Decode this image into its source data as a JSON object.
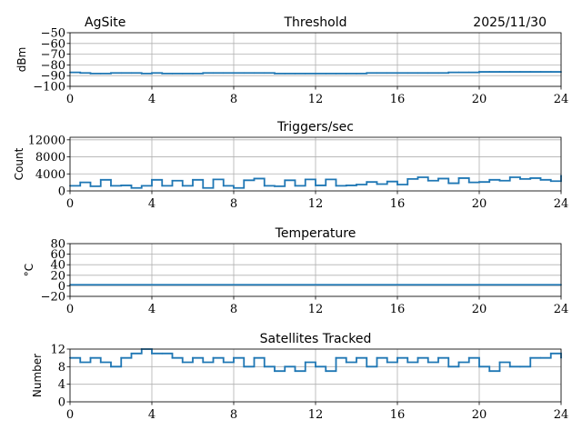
{
  "chart_data": [
    {
      "type": "line",
      "title": "Threshold",
      "title_left": "AgSite",
      "title_right": "2025/11/30",
      "xlabel": "",
      "ylabel": "dBm",
      "xlim": [
        0,
        24
      ],
      "ylim": [
        -100,
        -50
      ],
      "xticks": [
        "0",
        "4",
        "8",
        "12",
        "16",
        "20",
        "24"
      ],
      "yticks": [
        "−100",
        "−90",
        "−80",
        "−70",
        "−60",
        "−50"
      ],
      "ytick_values": [
        -100,
        -90,
        -80,
        -70,
        -60,
        -50
      ],
      "grid": true,
      "color": "#1f77b4",
      "x": [
        0,
        0.5,
        1,
        1.5,
        2,
        2.5,
        3,
        3.5,
        4,
        4.5,
        5,
        5.5,
        6,
        6.5,
        7,
        7.5,
        8,
        8.5,
        9,
        9.5,
        10,
        10.5,
        11,
        11.5,
        12,
        12.5,
        13,
        13.5,
        14,
        14.5,
        15,
        15.5,
        16,
        16.5,
        17,
        17.5,
        18,
        18.5,
        19,
        19.5,
        20,
        20.5,
        21,
        21.5,
        22,
        22.5,
        23,
        23.5,
        24
      ],
      "values": [
        -87,
        -87.5,
        -88,
        -88,
        -87.5,
        -87.5,
        -87.5,
        -88,
        -87.5,
        -88,
        -88,
        -88,
        -88,
        -87.5,
        -87.5,
        -87.5,
        -87.5,
        -87.5,
        -87.5,
        -87.5,
        -88,
        -88,
        -88,
        -88,
        -88,
        -88,
        -88,
        -88,
        -88,
        -87.5,
        -87.5,
        -87.5,
        -87.5,
        -87.5,
        -87.5,
        -87.5,
        -87.5,
        -87,
        -87,
        -87,
        -86.5,
        -86.5,
        -86.5,
        -86.5,
        -86.5,
        -86.5,
        -86.5,
        -86.5,
        -86.5
      ]
    },
    {
      "type": "line",
      "title": "Triggers/sec",
      "xlabel": "",
      "ylabel": "Count",
      "xlim": [
        0,
        24
      ],
      "ylim": [
        0,
        12600
      ],
      "xticks": [
        "0",
        "4",
        "8",
        "12",
        "16",
        "20",
        "24"
      ],
      "yticks": [
        "0",
        "4000",
        "8000",
        "12000"
      ],
      "ytick_values": [
        0,
        4000,
        8000,
        12000
      ],
      "grid": true,
      "color": "#1f77b4",
      "x": [
        0,
        0.5,
        1,
        1.5,
        2,
        2.5,
        3,
        3.5,
        4,
        4.5,
        5,
        5.5,
        6,
        6.5,
        7,
        7.5,
        8,
        8.5,
        9,
        9.5,
        10,
        10.5,
        11,
        11.5,
        12,
        12.5,
        13,
        13.5,
        14,
        14.5,
        15,
        15.5,
        16,
        16.5,
        17,
        17.5,
        18,
        18.5,
        19,
        19.5,
        20,
        20.5,
        21,
        21.5,
        22,
        22.5,
        23,
        23.5,
        24
      ],
      "values": [
        1200,
        2000,
        1100,
        2600,
        1200,
        1300,
        700,
        1200,
        2600,
        1200,
        2400,
        1200,
        2600,
        700,
        2700,
        1200,
        700,
        2500,
        2900,
        1200,
        1100,
        2500,
        1200,
        2700,
        1300,
        2700,
        1200,
        1300,
        1500,
        2100,
        1600,
        2200,
        1500,
        2800,
        3200,
        2400,
        2900,
        1800,
        3000,
        2000,
        2100,
        2600,
        2400,
        3200,
        2800,
        3000,
        2600,
        2300,
        3600
      ]
    },
    {
      "type": "line",
      "title": "Temperature",
      "xlabel": "",
      "ylabel": "°C",
      "xlim": [
        0,
        24
      ],
      "ylim": [
        -20,
        80
      ],
      "xticks": [
        "0",
        "4",
        "8",
        "12",
        "16",
        "20",
        "24"
      ],
      "yticks": [
        "−20",
        "0",
        "20",
        "40",
        "60",
        "80"
      ],
      "ytick_values": [
        -20,
        0,
        20,
        40,
        60,
        80
      ],
      "grid": true,
      "color": "#1f77b4",
      "x": [
        0,
        24
      ],
      "values": [
        2,
        2
      ]
    },
    {
      "type": "line",
      "title": "Satellites Tracked",
      "xlabel": "",
      "ylabel": "Number",
      "xlim": [
        0,
        24
      ],
      "ylim": [
        0,
        12
      ],
      "xticks": [
        "0",
        "4",
        "8",
        "12",
        "16",
        "20",
        "24"
      ],
      "yticks": [
        "0",
        "4",
        "8",
        "12"
      ],
      "ytick_values": [
        0,
        4,
        8,
        12
      ],
      "grid": true,
      "color": "#1f77b4",
      "x": [
        0,
        0.5,
        1,
        1.5,
        2,
        2.5,
        3,
        3.5,
        4,
        4.5,
        5,
        5.5,
        6,
        6.5,
        7,
        7.5,
        8,
        8.5,
        9,
        9.5,
        10,
        10.5,
        11,
        11.5,
        12,
        12.5,
        13,
        13.5,
        14,
        14.5,
        15,
        15.5,
        16,
        16.5,
        17,
        17.5,
        18,
        18.5,
        19,
        19.5,
        20,
        20.5,
        21,
        21.5,
        22,
        22.5,
        23,
        23.5,
        24
      ],
      "values": [
        10,
        9,
        10,
        9,
        8,
        10,
        11,
        12,
        11,
        11,
        10,
        9,
        10,
        9,
        10,
        9,
        10,
        8,
        10,
        8,
        7,
        8,
        7,
        9,
        8,
        7,
        10,
        9,
        10,
        8,
        10,
        9,
        10,
        9,
        10,
        9,
        10,
        8,
        9,
        10,
        8,
        7,
        9,
        8,
        8,
        10,
        10,
        11,
        10
      ]
    }
  ]
}
